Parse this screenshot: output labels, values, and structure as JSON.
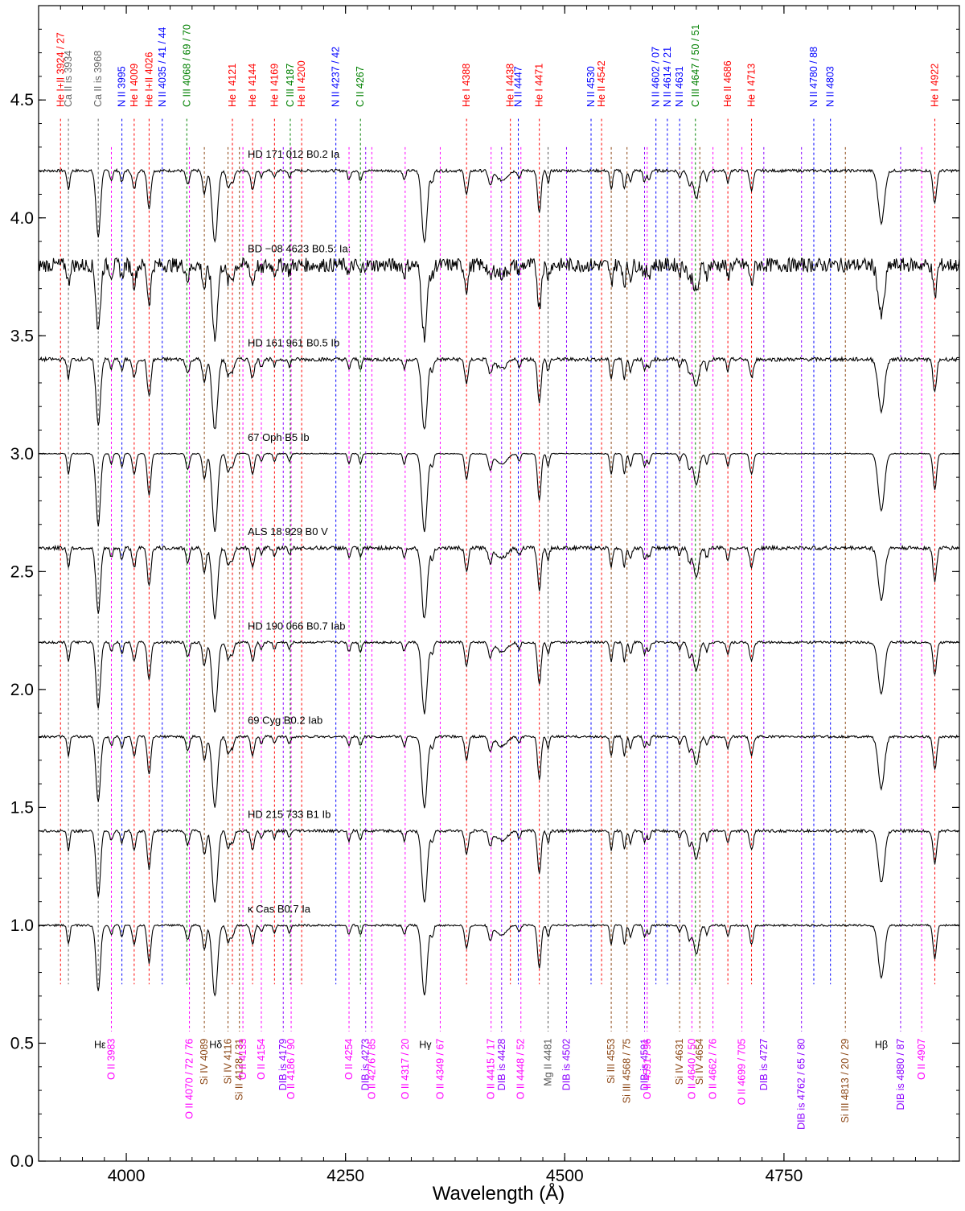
{
  "chart_data": {
    "type": "line",
    "title": "",
    "xlabel": "Wavelength (Å)",
    "ylabel": "",
    "xlim": [
      3900,
      4950
    ],
    "ylim": [
      0.0,
      4.9
    ],
    "x_ticks": [
      4000,
      4250,
      4500,
      4750
    ],
    "y_ticks": [
      0.0,
      0.5,
      1.0,
      1.5,
      2.0,
      2.5,
      3.0,
      3.5,
      4.0,
      4.5
    ],
    "y_tick_labels": [
      "0.0",
      "0.5",
      "1.0",
      "1.5",
      "2.0",
      "2.5",
      "3.0",
      "3.5",
      "4.0",
      "4.5"
    ],
    "grid": false,
    "legend": "none",
    "line_color": "#000000",
    "series": [
      {
        "label": "HD 171 012   B0.2 Ia",
        "continuum": 4.2,
        "depth": 1.0,
        "noise": 0.006
      },
      {
        "label": "BD −08 4623   B0.5: Ia:",
        "continuum": 3.8,
        "depth": 1.0,
        "noise": 0.03
      },
      {
        "label": "HD 161 961   B0.5 Ib",
        "continuum": 3.4,
        "depth": 1.0,
        "noise": 0.008
      },
      {
        "label": "67 Oph   B5 Ib",
        "continuum": 3.0,
        "depth": 1.1,
        "noise": 0.002
      },
      {
        "label": "ALS 18 929   B0 V",
        "continuum": 2.6,
        "depth": 1.0,
        "noise": 0.008
      },
      {
        "label": "HD 190 066   B0.7 Iab",
        "continuum": 2.2,
        "depth": 1.0,
        "noise": 0.005
      },
      {
        "label": "69 Cyg   B0.2 Iab",
        "continuum": 1.8,
        "depth": 1.0,
        "noise": 0.005
      },
      {
        "label": "HD 215 733   B1 Ib",
        "continuum": 1.4,
        "depth": 1.0,
        "noise": 0.006
      },
      {
        "label": "κ Cas   B0.7 Ia",
        "continuum": 1.0,
        "depth": 1.0,
        "noise": 0.004
      }
    ],
    "absorption_lines": [
      {
        "w": 3934,
        "d": 0.08,
        "s": 1.5
      },
      {
        "w": 3968,
        "d": 0.28,
        "s": 2.5
      },
      {
        "w": 3983,
        "d": 0.04,
        "s": 1.5
      },
      {
        "w": 3995,
        "d": 0.05,
        "s": 1.5
      },
      {
        "w": 4009,
        "d": 0.08,
        "s": 2
      },
      {
        "w": 4026,
        "d": 0.16,
        "s": 2
      },
      {
        "w": 4070,
        "d": 0.06,
        "s": 2
      },
      {
        "w": 4089,
        "d": 0.1,
        "s": 2
      },
      {
        "w": 4101,
        "d": 0.3,
        "s": 3
      },
      {
        "w": 4116,
        "d": 0.07,
        "s": 2
      },
      {
        "w": 4121,
        "d": 0.05,
        "s": 2
      },
      {
        "w": 4144,
        "d": 0.08,
        "s": 2
      },
      {
        "w": 4154,
        "d": 0.03,
        "s": 1.5
      },
      {
        "w": 4169,
        "d": 0.03,
        "s": 1.5
      },
      {
        "w": 4186,
        "d": 0.03,
        "s": 1.5
      },
      {
        "w": 4254,
        "d": 0.04,
        "s": 1.5
      },
      {
        "w": 4267,
        "d": 0.04,
        "s": 1.5
      },
      {
        "w": 4317,
        "d": 0.04,
        "s": 1.5
      },
      {
        "w": 4340,
        "d": 0.3,
        "s": 3
      },
      {
        "w": 4349,
        "d": 0.05,
        "s": 1.5
      },
      {
        "w": 4388,
        "d": 0.1,
        "s": 2
      },
      {
        "w": 4415,
        "d": 0.06,
        "s": 2
      },
      {
        "w": 4428,
        "d": 0.04,
        "s": 6
      },
      {
        "w": 4448,
        "d": 0.03,
        "s": 1.5
      },
      {
        "w": 4471,
        "d": 0.18,
        "s": 2
      },
      {
        "w": 4481,
        "d": 0.05,
        "s": 1.5
      },
      {
        "w": 4553,
        "d": 0.08,
        "s": 1.5
      },
      {
        "w": 4568,
        "d": 0.08,
        "s": 1.5
      },
      {
        "w": 4575,
        "d": 0.05,
        "s": 1.5
      },
      {
        "w": 4591,
        "d": 0.05,
        "s": 1.5
      },
      {
        "w": 4596,
        "d": 0.04,
        "s": 1.5
      },
      {
        "w": 4631,
        "d": 0.03,
        "s": 1.5
      },
      {
        "w": 4642,
        "d": 0.06,
        "s": 2
      },
      {
        "w": 4650,
        "d": 0.12,
        "s": 3
      },
      {
        "w": 4662,
        "d": 0.04,
        "s": 1.5
      },
      {
        "w": 4686,
        "d": 0.05,
        "s": 1.5
      },
      {
        "w": 4713,
        "d": 0.08,
        "s": 2
      },
      {
        "w": 4861,
        "d": 0.22,
        "s": 3.5
      },
      {
        "w": 4922,
        "d": 0.14,
        "s": 2
      }
    ],
    "top_labels": [
      {
        "text": "He I+II 3924 / 27",
        "w": 3925,
        "color": "#ff0000"
      },
      {
        "text": "Ca II is 3934",
        "w": 3934,
        "color": "#666666"
      },
      {
        "text": "Ca II is 3968",
        "w": 3968,
        "color": "#666666"
      },
      {
        "text": "N II 3995",
        "w": 3995,
        "color": "#0000ff"
      },
      {
        "text": "He I 4009",
        "w": 4009,
        "color": "#ff0000"
      },
      {
        "text": "He I+II 4026",
        "w": 4026,
        "color": "#ff0000"
      },
      {
        "text": "N II 4035 / 41 / 44",
        "w": 4041,
        "color": "#0000ff"
      },
      {
        "text": "C III 4068 / 69 / 70",
        "w": 4069,
        "color": "#008000"
      },
      {
        "text": "He I 4121",
        "w": 4121,
        "color": "#ff0000"
      },
      {
        "text": "He I 4144",
        "w": 4144,
        "color": "#ff0000"
      },
      {
        "text": "He I 4169",
        "w": 4169,
        "color": "#ff0000"
      },
      {
        "text": "C III 4187",
        "w": 4187,
        "color": "#008000"
      },
      {
        "text": "He II 4200",
        "w": 4200,
        "color": "#ff0000"
      },
      {
        "text": "N II 4237 / 42",
        "w": 4239,
        "color": "#0000ff"
      },
      {
        "text": "C II 4267",
        "w": 4267,
        "color": "#008000"
      },
      {
        "text": "He I 4388",
        "w": 4388,
        "color": "#ff0000"
      },
      {
        "text": "He I 4438",
        "w": 4438,
        "color": "#ff0000"
      },
      {
        "text": "N II 4447",
        "w": 4447,
        "color": "#0000ff"
      },
      {
        "text": "He I 4471",
        "w": 4471,
        "color": "#ff0000"
      },
      {
        "text": "N II 4530",
        "w": 4530,
        "color": "#0000ff"
      },
      {
        "text": "He II 4542",
        "w": 4542,
        "color": "#ff0000"
      },
      {
        "text": "N II 4602 / 07",
        "w": 4604,
        "color": "#0000ff"
      },
      {
        "text": "N II 4614 / 21",
        "w": 4617,
        "color": "#0000ff"
      },
      {
        "text": "N II 4631",
        "w": 4631,
        "color": "#0000ff"
      },
      {
        "text": "C III 4647 / 50 / 51",
        "w": 4649,
        "color": "#008000"
      },
      {
        "text": "He II 4686",
        "w": 4686,
        "color": "#ff0000"
      },
      {
        "text": "He I 4713",
        "w": 4713,
        "color": "#ff0000"
      },
      {
        "text": "N II 4780 / 88",
        "w": 4784,
        "color": "#0000ff"
      },
      {
        "text": "N II 4803",
        "w": 4803,
        "color": "#0000ff"
      },
      {
        "text": "He I 4922",
        "w": 4922,
        "color": "#ff0000"
      }
    ],
    "bottom_labels": [
      {
        "text": "Hε",
        "w": 3970,
        "color": "#000000",
        "rot": false
      },
      {
        "text": "Hδ",
        "w": 4102,
        "color": "#000000",
        "rot": false
      },
      {
        "text": "Hγ",
        "w": 4341,
        "color": "#000000",
        "rot": false
      },
      {
        "text": "Hβ",
        "w": 4861,
        "color": "#000000",
        "rot": false
      },
      {
        "text": "O II 3983",
        "w": 3983,
        "color": "#ff00ff",
        "rot": true
      },
      {
        "text": "O II 4070 / 72 / 76",
        "w": 4072,
        "color": "#ff00ff",
        "rot": true
      },
      {
        "text": "Si IV 4089",
        "w": 4089,
        "color": "#8b4513",
        "rot": true
      },
      {
        "text": "Si IV 4116",
        "w": 4116,
        "color": "#8b4513",
        "rot": true
      },
      {
        "text": "Si II 4128 / 31",
        "w": 4129,
        "color": "#8b4513",
        "rot": true
      },
      {
        "text": "O II 4133",
        "w": 4133,
        "color": "#ff00ff",
        "rot": true
      },
      {
        "text": "O II 4154",
        "w": 4154,
        "color": "#ff00ff",
        "rot": true
      },
      {
        "text": "DIB is 4179",
        "w": 4179,
        "color": "#8b00ff",
        "rot": true
      },
      {
        "text": "O II 4186 / 90",
        "w": 4188,
        "color": "#ff00ff",
        "rot": true
      },
      {
        "text": "O II 4254",
        "w": 4254,
        "color": "#ff00ff",
        "rot": true
      },
      {
        "text": "DIB is 4273",
        "w": 4273,
        "color": "#8b00ff",
        "rot": true
      },
      {
        "text": "O II 4276 / 85",
        "w": 4280,
        "color": "#ff00ff",
        "rot": true
      },
      {
        "text": "O II 4317 / 20",
        "w": 4318,
        "color": "#ff00ff",
        "rot": true
      },
      {
        "text": "O II 4349 / 67",
        "w": 4358,
        "color": "#ff00ff",
        "rot": true
      },
      {
        "text": "O II 4415 / 17",
        "w": 4416,
        "color": "#ff00ff",
        "rot": true
      },
      {
        "text": "DIB is 4428",
        "w": 4428,
        "color": "#8b00ff",
        "rot": true
      },
      {
        "text": "O II 4448 / 52",
        "w": 4450,
        "color": "#ff00ff",
        "rot": true
      },
      {
        "text": "Mg II 4481",
        "w": 4481,
        "color": "#555555",
        "rot": true
      },
      {
        "text": "DIB is 4502",
        "w": 4502,
        "color": "#8b00ff",
        "rot": true
      },
      {
        "text": "Si III 4553",
        "w": 4553,
        "color": "#8b4513",
        "rot": true
      },
      {
        "text": "Si III 4568 / 75",
        "w": 4571,
        "color": "#8b4513",
        "rot": true
      },
      {
        "text": "DIB is 4591",
        "w": 4591,
        "color": "#8b00ff",
        "rot": true
      },
      {
        "text": "O II 4591 / 96",
        "w": 4594,
        "color": "#ff00ff",
        "rot": true
      },
      {
        "text": "Si IV 4631",
        "w": 4631,
        "color": "#8b4513",
        "rot": true
      },
      {
        "text": "O II 4640 / 50",
        "w": 4645,
        "color": "#ff00ff",
        "rot": true
      },
      {
        "text": "Si IV 4654",
        "w": 4654,
        "color": "#8b4513",
        "rot": true
      },
      {
        "text": "O II 4662 / 76",
        "w": 4669,
        "color": "#ff00ff",
        "rot": true
      },
      {
        "text": "O II 4699 / 705",
        "w": 4702,
        "color": "#ff00ff",
        "rot": true
      },
      {
        "text": "DIB is 4727",
        "w": 4727,
        "color": "#8b00ff",
        "rot": true
      },
      {
        "text": "DIB is 4762 / 65 / 80",
        "w": 4770,
        "color": "#8b00ff",
        "rot": true
      },
      {
        "text": "Si III 4813 / 20 / 29",
        "w": 4820,
        "color": "#8b4513",
        "rot": true
      },
      {
        "text": "DIB is 4880 / 87",
        "w": 4883,
        "color": "#8b00ff",
        "rot": true
      },
      {
        "text": "O II 4907",
        "w": 4907,
        "color": "#ff00ff",
        "rot": true
      }
    ]
  }
}
